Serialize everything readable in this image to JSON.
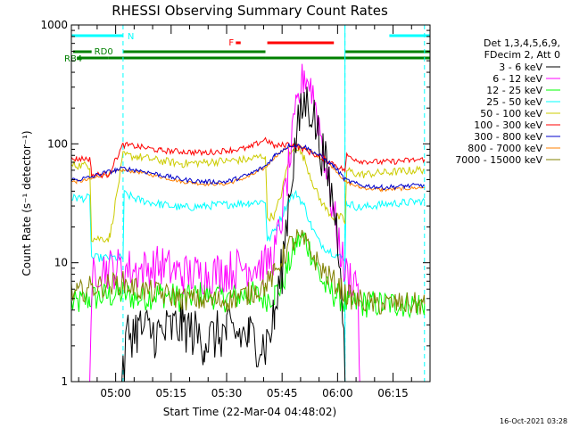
{
  "chart_data": {
    "type": "line",
    "title": "RHESSI Observing Summary Count Rates",
    "xlabel": "Start Time (22-Mar-04 04:48:02)",
    "ylabel": "Count Rate (s⁻¹ detector⁻¹)",
    "yscale": "log",
    "ylim": [
      1,
      1000
    ],
    "y_ticks": [
      "1",
      "10",
      "100",
      "1000"
    ],
    "x_ticks": [
      {
        "t": 300,
        "label": "05:00"
      },
      {
        "t": 315,
        "label": "05:15"
      },
      {
        "t": 330,
        "label": "05:30"
      },
      {
        "t": 345,
        "label": "05:45"
      },
      {
        "t": 360,
        "label": "06:00"
      },
      {
        "t": 375,
        "label": "06:15"
      }
    ],
    "xlim_minutes": [
      288.03,
      385.0
    ],
    "legend_header": [
      "Det 1,3,4,5,6,9,",
      "FDecim 2, Att 0"
    ],
    "legend_position": "right",
    "footer_date": "16-Oct-2021 03:28",
    "state_bars": {
      "N_label": "N",
      "F_label": "F",
      "RD0_label": "RD0",
      "RB4_label": "RB4",
      "night_intervals": [
        [
          288.03,
          302.0
        ],
        [
          374.0,
          385.0
        ]
      ],
      "rd0_intervals": [
        [
          288.5,
          293.5
        ],
        [
          302.0,
          340.5
        ],
        [
          362.0,
          385.0
        ]
      ],
      "rb4_intervals": [
        [
          289.5,
          298.0
        ],
        [
          298.0,
          340.5
        ],
        [
          340.5,
          362.0
        ],
        [
          362.0,
          385.0
        ]
      ],
      "flare_intervals": [
        [
          332.5,
          333.8
        ],
        [
          341.0,
          359.0
        ]
      ],
      "terminator_times": [
        302.0,
        362.0,
        383.5
      ]
    },
    "series": [
      {
        "name": "3 - 6 keV",
        "color": "#000000",
        "x": [
          288.03,
          302.0,
          303.0,
          306,
          312,
          318,
          324,
          330,
          336,
          340.5,
          343,
          345,
          347,
          349,
          351,
          353,
          355,
          357,
          359,
          361,
          362
        ],
        "y": [
          1,
          1,
          2.5,
          2.8,
          2.5,
          3.0,
          2.2,
          2.6,
          2.4,
          2.0,
          3.5,
          9,
          40,
          120,
          230,
          200,
          110,
          60,
          30,
          10,
          1
        ]
      },
      {
        "name": "6 - 12 keV",
        "color": "#ff00ff",
        "x": [
          288.03,
          293.0,
          294.0,
          302.0,
          303,
          306,
          312,
          318,
          324,
          330,
          336,
          340.5,
          343,
          345,
          347,
          349,
          351,
          353,
          355,
          357,
          359,
          361,
          362,
          365.5,
          366.0
        ],
        "y": [
          1,
          1,
          9,
          9,
          9,
          8.5,
          9.5,
          8.0,
          8.0,
          8.5,
          9.5,
          9.5,
          12,
          25,
          70,
          200,
          400,
          300,
          150,
          60,
          25,
          12,
          8,
          7,
          1
        ]
      },
      {
        "name": "12 - 25 keV",
        "color": "#00ff00",
        "x": [
          288.03,
          289.0,
          293.0,
          302.0,
          306,
          312,
          318,
          324,
          330,
          336,
          340.5,
          343,
          345,
          347,
          349,
          351,
          353,
          355,
          357,
          359,
          361,
          362,
          364,
          370,
          376,
          382,
          383.5
        ],
        "y": [
          4.5,
          4.5,
          5,
          5.5,
          5.0,
          5.5,
          5.0,
          5.5,
          5.0,
          5.5,
          5.0,
          5.5,
          6.5,
          10,
          15,
          16,
          12,
          8,
          6,
          5.5,
          5.0,
          4.5,
          4.5,
          4.5,
          4.5,
          4.5,
          4.5
        ]
      },
      {
        "name": "25 - 50 keV",
        "color": "#00ffff",
        "x": [
          288.03,
          289.5,
          293.0,
          293.5,
          302.0,
          302.3,
          306,
          312,
          318,
          324,
          330,
          336,
          340.5,
          341.0,
          343,
          345,
          347,
          349,
          351,
          353,
          355,
          357,
          359,
          361,
          362,
          362.3,
          366,
          372,
          378,
          383.5
        ],
        "y": [
          35,
          35,
          35,
          11,
          11,
          38,
          34,
          31,
          29,
          30,
          31,
          32,
          33,
          15,
          19,
          25,
          35,
          38,
          30,
          20,
          15,
          13,
          12,
          11,
          11,
          32,
          29,
          31,
          32,
          33
        ]
      },
      {
        "name": "50 - 100 keV",
        "color": "#cccc00",
        "x": [
          288.03,
          289.5,
          293.0,
          293.5,
          298.0,
          298.5,
          302.0,
          306,
          312,
          318,
          324,
          330,
          336,
          340.5,
          341.0,
          343,
          345,
          347,
          349,
          351,
          353,
          355,
          357,
          359,
          361,
          362,
          362.5,
          366,
          372,
          378,
          383.5
        ],
        "y": [
          66,
          66,
          66,
          16,
          16,
          17,
          80,
          78,
          72,
          68,
          70,
          72,
          74,
          80,
          24,
          25,
          40,
          80,
          95,
          75,
          50,
          35,
          28,
          24,
          24,
          22,
          60,
          55,
          57,
          59,
          61
        ]
      },
      {
        "name": "100 - 300 keV",
        "color": "#ff0000",
        "x": [
          288.03,
          289.5,
          293.0,
          293.5,
          298.0,
          302.0,
          306,
          312,
          318,
          324,
          330,
          336,
          340.5,
          343,
          347,
          351,
          355,
          359,
          361,
          362,
          362.5,
          366,
          372,
          378,
          383.5
        ],
        "y": [
          75,
          75,
          75,
          55,
          55,
          98,
          95,
          88,
          86,
          84,
          88,
          92,
          110,
          95,
          100,
          90,
          78,
          68,
          62,
          60,
          80,
          72,
          70,
          72,
          74
        ]
      },
      {
        "name": "300 - 800 keV",
        "color": "#0000cc",
        "x": [
          288.03,
          289.5,
          293.0,
          296,
          300,
          302.0,
          306,
          312,
          318,
          324,
          330,
          336,
          340.5,
          343,
          347,
          351,
          355,
          359,
          361,
          362,
          366,
          372,
          378,
          383.5
        ],
        "y": [
          50,
          50,
          52,
          56,
          60,
          62,
          60,
          55,
          50,
          48,
          48,
          55,
          65,
          80,
          98,
          95,
          80,
          65,
          55,
          50,
          45,
          43,
          44,
          45
        ]
      },
      {
        "name": "800 - 7000 keV",
        "color": "#ff8000",
        "x": [
          288.03,
          289.5,
          293.0,
          296,
          300,
          302.0,
          306,
          312,
          318,
          324,
          330,
          336,
          340.5,
          343,
          347,
          351,
          355,
          359,
          361,
          362,
          366,
          372,
          378,
          383.5
        ],
        "y": [
          48,
          48,
          50,
          54,
          58,
          60,
          58,
          53,
          48,
          46,
          46,
          53,
          63,
          78,
          96,
          93,
          78,
          63,
          53,
          48,
          43,
          41,
          42,
          43
        ]
      },
      {
        "name": "7000 - 15000 keV",
        "color": "#808000",
        "x": [
          288.03,
          289.5,
          293.0,
          302.0,
          306,
          312,
          318,
          324,
          330,
          336,
          340.5,
          343,
          345,
          347,
          349,
          351,
          353,
          355,
          357,
          359,
          361,
          362,
          364,
          370,
          376,
          382,
          383.5
        ],
        "y": [
          5.5,
          5.5,
          6.2,
          6.8,
          6.0,
          5.5,
          5.0,
          4.8,
          4.8,
          5.5,
          6.5,
          8,
          11,
          14,
          16,
          15,
          12,
          9.5,
          8,
          7,
          6,
          5.5,
          5.0,
          4.5,
          4.5,
          4.5,
          4.5
        ]
      }
    ]
  }
}
